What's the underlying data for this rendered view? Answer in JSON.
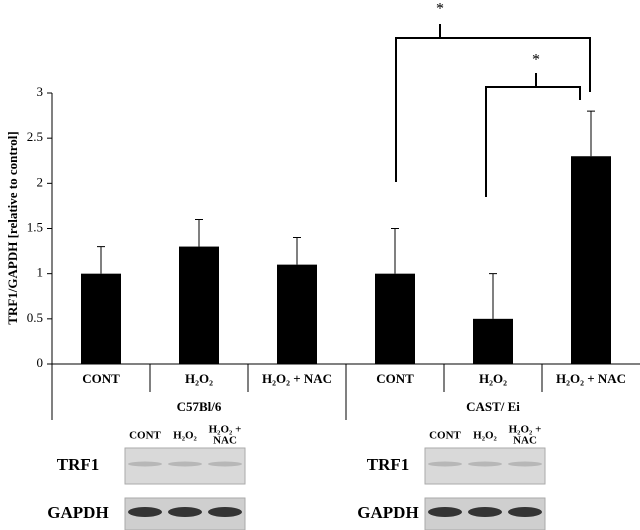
{
  "chart_data": {
    "type": "bar",
    "y_label": "TRF1/GAPDH [relative to control]",
    "categories": [
      "CONT",
      "H₂O₂",
      "H₂O₂ +  NAC",
      "CONT",
      "H₂O₂",
      "H₂O₂ +  NAC"
    ],
    "values": [
      1,
      1.3,
      1.1,
      1,
      0.5,
      2.3
    ],
    "errors": [
      0.3,
      0.3,
      0.3,
      0.5,
      0.5,
      0.5
    ],
    "color": "#000000",
    "groups": [
      "C57Bl/6",
      "CAST/ Ei"
    ],
    "annotations": [
      "*",
      "*"
    ],
    "ylim": [
      0,
      3
    ],
    "yticks": [
      0,
      0.5,
      1,
      1.5,
      2,
      2.5,
      3
    ]
  },
  "blots": [
    {
      "lanes": [
        [
          "CONT"
        ],
        [
          "H₂O₂"
        ],
        [
          "H₂O₂ +",
          "NAC"
        ]
      ],
      "rows": [
        "TRF1",
        "GAPDH"
      ]
    },
    {
      "lanes": [
        [
          "CONT"
        ],
        [
          "H₂O₂"
        ],
        [
          "H₂O₂ +",
          "NAC"
        ]
      ],
      "rows": [
        "TRF1",
        "GAPDH"
      ]
    }
  ]
}
